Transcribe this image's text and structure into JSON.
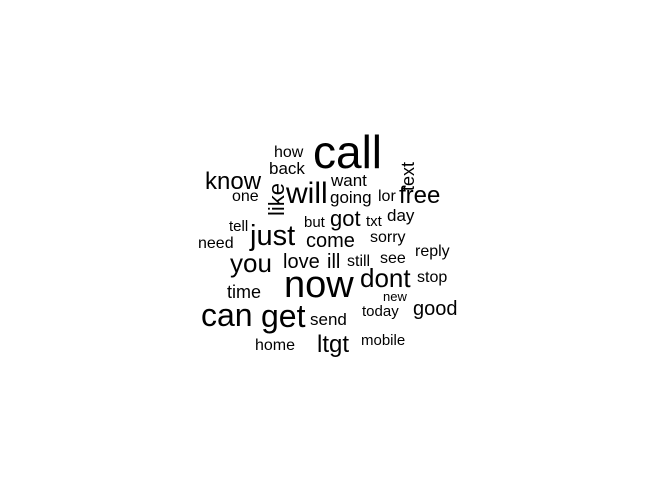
{
  "chart_data": {
    "type": "wordcloud",
    "words": [
      {
        "text": "call"
      },
      {
        "text": "now"
      },
      {
        "text": "can"
      },
      {
        "text": "get"
      },
      {
        "text": "will"
      },
      {
        "text": "just"
      },
      {
        "text": "you"
      },
      {
        "text": "dont"
      },
      {
        "text": "know"
      },
      {
        "text": "free"
      },
      {
        "text": "ltgt"
      },
      {
        "text": "like"
      },
      {
        "text": "got"
      },
      {
        "text": "come"
      },
      {
        "text": "good"
      },
      {
        "text": "love"
      },
      {
        "text": "ill"
      },
      {
        "text": "time"
      },
      {
        "text": "text"
      },
      {
        "text": "going"
      },
      {
        "text": "want"
      },
      {
        "text": "day"
      },
      {
        "text": "send"
      },
      {
        "text": "back"
      },
      {
        "text": "how"
      },
      {
        "text": "one"
      },
      {
        "text": "lor"
      },
      {
        "text": "need"
      },
      {
        "text": "sorry"
      },
      {
        "text": "see"
      },
      {
        "text": "still"
      },
      {
        "text": "reply"
      },
      {
        "text": "stop"
      },
      {
        "text": "today"
      },
      {
        "text": "home"
      },
      {
        "text": "mobile"
      },
      {
        "text": "but"
      },
      {
        "text": "txt"
      },
      {
        "text": "tell"
      },
      {
        "text": "new"
      }
    ],
    "color": "#000000"
  }
}
